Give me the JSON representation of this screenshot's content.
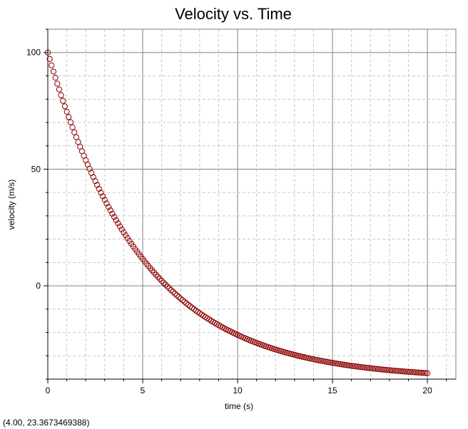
{
  "chart_data": {
    "type": "scatter",
    "title": "Velocity vs. Time",
    "xlabel": "time (s)",
    "ylabel": "velocity (m/s)",
    "xlim": [
      0,
      21.5
    ],
    "ylim": [
      -40,
      110
    ],
    "x_ticks": [
      0,
      5,
      10,
      15,
      20
    ],
    "y_ticks": [
      100,
      50,
      0
    ],
    "grid": true,
    "marker": "open-circle",
    "model": "v(t) = -40 + 140 * exp(-0.2 * t)",
    "t_start": 0,
    "t_end": 20,
    "t_step": 0.1,
    "series": [
      {
        "color": "#8b0000"
      }
    ]
  },
  "readout": "(4.00, 23.3673469388)",
  "colors": {
    "major_grid": "#808080",
    "minor_grid": "#c8c8c8",
    "axis": "#000000",
    "marker": "#8b0000"
  }
}
